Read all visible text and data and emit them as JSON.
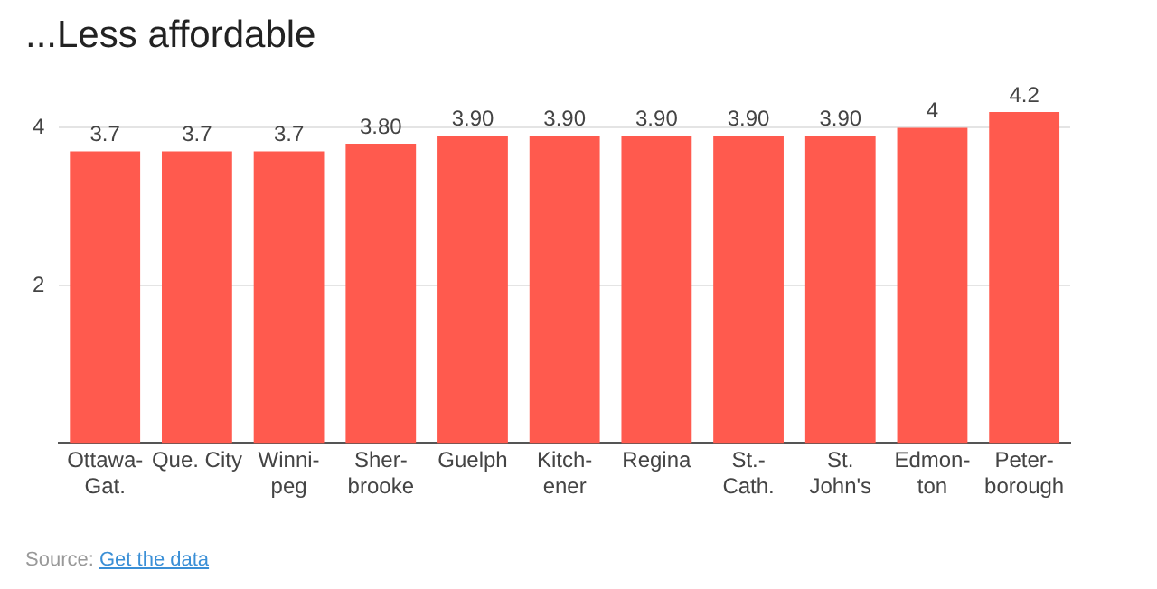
{
  "chart_data": {
    "type": "bar",
    "title": "...Less affordable",
    "categories": [
      "Ottawa-\nGat.",
      "Que. City",
      "Winni-\npeg",
      "Sher-\nbrooke",
      "Guelph",
      "Kitch-\nener",
      "Regina",
      "St.-\nCath.",
      "St.\nJohn's",
      "Edmon-\nton",
      "Peter-\nborough"
    ],
    "values": [
      3.7,
      3.7,
      3.7,
      3.8,
      3.9,
      3.9,
      3.9,
      3.9,
      3.9,
      4,
      4.2
    ],
    "value_labels": [
      "3.7",
      "3.7",
      "3.7",
      "3.80",
      "3.90",
      "3.90",
      "3.90",
      "3.90",
      "3.90",
      "4",
      "4.2"
    ],
    "color": "#ff5a4e",
    "ylim": [
      0,
      4.2
    ],
    "yticks": [
      2,
      4
    ],
    "grid": "y",
    "annotations": [
      "Source:",
      "Get the data"
    ]
  }
}
